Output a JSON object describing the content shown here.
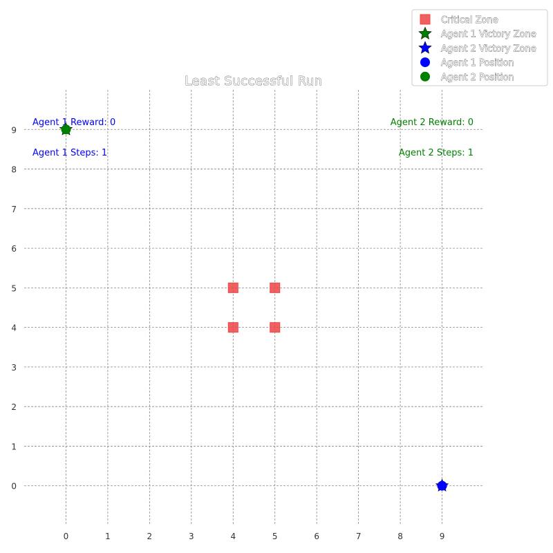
{
  "chart_data": {
    "type": "scatter",
    "title": "Least Successful Run",
    "xlabel": "",
    "ylabel": "",
    "xlim": [
      -1,
      10
    ],
    "ylim": [
      -1,
      10
    ],
    "xticks": [
      "0",
      "1",
      "2",
      "3",
      "4",
      "5",
      "6",
      "7",
      "8",
      "9"
    ],
    "yticks": [
      "0",
      "1",
      "2",
      "3",
      "4",
      "5",
      "6",
      "7",
      "8",
      "9"
    ],
    "grid": true,
    "legend_placement": "top-right",
    "series": [
      {
        "name": "Critical Zone",
        "marker": "square",
        "color": "#ee4444",
        "points": [
          [
            4,
            4
          ],
          [
            4,
            5
          ],
          [
            5,
            4
          ],
          [
            5,
            5
          ]
        ]
      },
      {
        "name": "Agent 1 Victory Zone",
        "marker": "star",
        "color": "#008000",
        "points": [
          [
            0,
            9
          ]
        ]
      },
      {
        "name": "Agent 2 Victory Zone",
        "marker": "star",
        "color": "#0000ff",
        "points": [
          [
            9,
            0
          ]
        ]
      },
      {
        "name": "Agent 1 Position",
        "marker": "circle",
        "color": "#0000ff",
        "points": [
          [
            9,
            0
          ]
        ]
      },
      {
        "name": "Agent 2 Position",
        "marker": "circle",
        "color": "#008000",
        "points": [
          [
            0,
            9
          ]
        ]
      }
    ],
    "annotations": {
      "agent1_reward": "Agent 1 Reward: 0",
      "agent1_steps": "Agent 1 Steps: 1",
      "agent2_reward": "Agent 2 Reward: 0",
      "agent2_steps": "Agent 2 Steps: 1",
      "agent1_color": "#0000ff",
      "agent2_color": "#008000"
    }
  }
}
